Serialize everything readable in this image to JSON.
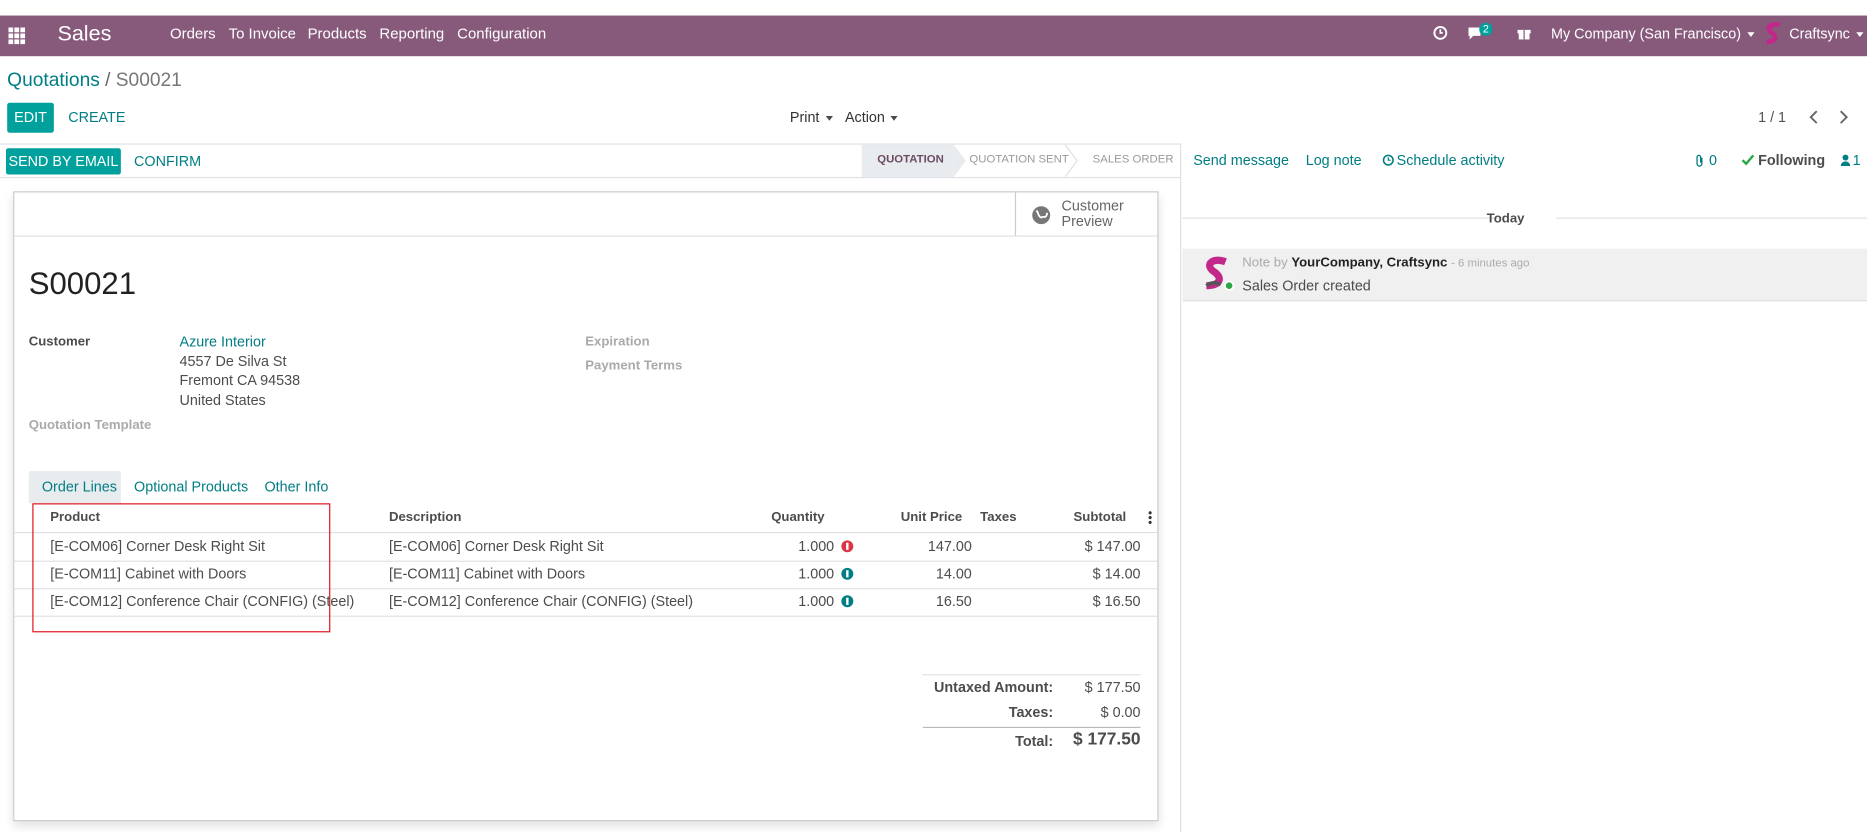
{
  "navbar": {
    "app": "Sales",
    "menu": [
      "Orders",
      "To Invoice",
      "Products",
      "Reporting",
      "Configuration"
    ],
    "message_count": "2",
    "company": "My Company (San Francisco)",
    "user": "Craftsync"
  },
  "breadcrumb": {
    "parent": "Quotations",
    "separator": "/",
    "current": "S00021"
  },
  "control_panel": {
    "edit": "EDIT",
    "create": "CREATE",
    "print": "Print",
    "action": "Action",
    "pager": "1 / 1"
  },
  "statusbar": {
    "buttons": [
      "SEND BY EMAIL",
      "CONFIRM"
    ],
    "stages": [
      "QUOTATION",
      "QUOTATION SENT",
      "SALES ORDER"
    ]
  },
  "form": {
    "button_box": "Customer Preview",
    "name": "S00021",
    "customer_label": "Customer",
    "customer_name": "Azure Interior",
    "customer_address": [
      "4557 De Silva St",
      "Fremont CA 94538",
      "United States"
    ],
    "template_label": "Quotation Template",
    "expiration_label": "Expiration",
    "payment_terms_label": "Payment Terms",
    "tabs": [
      "Order Lines",
      "Optional Products",
      "Other Info"
    ],
    "table": {
      "headers": [
        "Product",
        "Description",
        "Quantity",
        "Unit Price",
        "Taxes",
        "Subtotal"
      ],
      "rows": [
        {
          "product": "[E-COM06] Corner Desk Right Sit",
          "description": "[E-COM06] Corner Desk Right Sit",
          "quantity": "1.000",
          "unit_price": "147.00",
          "subtotal": "$ 147.00"
        },
        {
          "product": "[E-COM11] Cabinet with Doors",
          "description": "[E-COM11] Cabinet with Doors",
          "quantity": "1.000",
          "unit_price": "14.00",
          "subtotal": "$ 14.00"
        },
        {
          "product": "[E-COM12] Conference Chair (CONFIG) (Steel)",
          "description": "[E-COM12] Conference Chair (CONFIG) (Steel)",
          "quantity": "1.000",
          "unit_price": "16.50",
          "subtotal": "$ 16.50"
        }
      ]
    },
    "totals": [
      {
        "label": "Untaxed Amount:",
        "value": "$ 177.50"
      },
      {
        "label": "Taxes:",
        "value": "$ 0.00"
      },
      {
        "label": "Total:",
        "value": "$ 177.50"
      }
    ]
  },
  "chatter": {
    "actions": [
      "Send message",
      "Log note",
      "Schedule activity"
    ],
    "attachments": "0",
    "following": "Following",
    "followers": "1",
    "date_separator": "Today",
    "message": {
      "prefix": "Note by",
      "author": "YourCompany, Craftsync",
      "time": "- 6 minutes ago",
      "body": "Sales Order created"
    }
  }
}
